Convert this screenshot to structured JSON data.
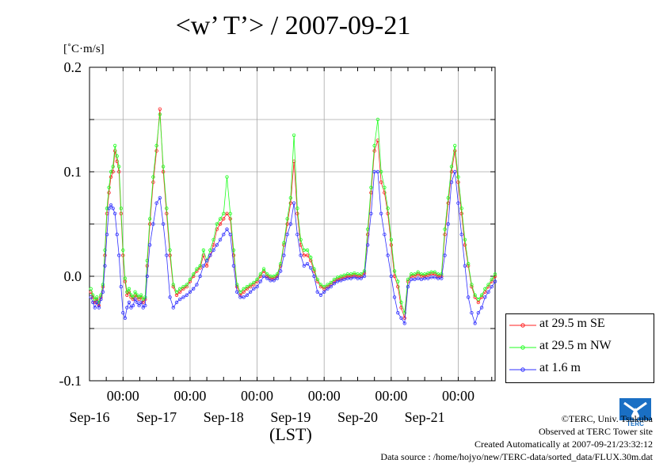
{
  "header": {
    "title": "<w’ T’> / 2007-09-21",
    "unit": "[˚C·m/s]",
    "x_caption": "(LST)"
  },
  "chart_data": {
    "type": "line",
    "title": "<w’ T’> / 2007-09-21",
    "ylabel": "[˚C·m/s]",
    "xlabel": "(LST)",
    "ylim": [
      -0.1,
      0.2
    ],
    "xlim_days": [
      15.5,
      21.55
    ],
    "y_ticks": [
      "0.2",
      "0.1",
      "0.0",
      "-0.1"
    ],
    "x_ticks": [
      "00:00",
      "00:00",
      "00:00",
      "00:00",
      "00:00",
      "00:00"
    ],
    "x_ticks_days": [
      16,
      17,
      18,
      19,
      20,
      21
    ],
    "date_labels": [
      "Sep-16",
      "Sep-17",
      "Sep-18",
      "Sep-19",
      "Sep-20",
      "Sep-21"
    ],
    "date_labels_days": [
      15.5,
      16.5,
      17.5,
      18.5,
      19.5,
      20.5
    ],
    "x_unit": "day of September 2007 (LST)",
    "grid": true,
    "legend_position": "bottom-right outside",
    "series": [
      {
        "name": "at 29.5 m SE",
        "color": "#ff2020",
        "x": [
          15.52,
          15.55,
          15.58,
          15.61,
          15.64,
          15.67,
          15.7,
          15.73,
          15.76,
          15.79,
          15.82,
          15.85,
          15.88,
          15.91,
          15.94,
          15.97,
          16.0,
          16.03,
          16.06,
          16.09,
          16.12,
          16.15,
          16.18,
          16.21,
          16.24,
          16.27,
          16.3,
          16.33,
          16.36,
          16.4,
          16.45,
          16.5,
          16.55,
          16.6,
          16.65,
          16.7,
          16.75,
          16.8,
          16.85,
          16.9,
          16.95,
          17.0,
          17.05,
          17.1,
          17.15,
          17.2,
          17.25,
          17.3,
          17.35,
          17.4,
          17.45,
          17.5,
          17.55,
          17.6,
          17.65,
          17.7,
          17.75,
          17.8,
          17.85,
          17.9,
          17.95,
          18.0,
          18.05,
          18.1,
          18.15,
          18.2,
          18.25,
          18.3,
          18.35,
          18.4,
          18.45,
          18.5,
          18.55,
          18.6,
          18.65,
          18.7,
          18.75,
          18.8,
          18.85,
          18.9,
          18.95,
          19.0,
          19.05,
          19.1,
          19.15,
          19.2,
          19.25,
          19.3,
          19.35,
          19.4,
          19.45,
          19.5,
          19.55,
          19.6,
          19.65,
          19.7,
          19.75,
          19.8,
          19.85,
          19.9,
          19.95,
          20.0,
          20.05,
          20.1,
          20.15,
          20.2,
          20.25,
          20.3,
          20.35,
          20.4,
          20.45,
          20.5,
          20.55,
          20.6,
          20.65,
          20.7,
          20.75,
          20.8,
          20.85,
          20.9,
          20.95,
          21.0,
          21.05,
          21.1,
          21.15,
          21.2,
          21.25,
          21.3,
          21.35,
          21.4,
          21.45,
          21.5,
          21.55
        ],
        "values": [
          -0.015,
          -0.02,
          -0.025,
          -0.022,
          -0.028,
          -0.02,
          -0.01,
          0.02,
          0.06,
          0.08,
          0.095,
          0.1,
          0.12,
          0.11,
          0.1,
          0.06,
          0.02,
          -0.005,
          -0.018,
          -0.015,
          -0.02,
          -0.022,
          -0.018,
          -0.02,
          -0.022,
          -0.02,
          -0.025,
          -0.022,
          0.01,
          0.05,
          0.09,
          0.12,
          0.16,
          0.1,
          0.06,
          0.02,
          -0.01,
          -0.018,
          -0.015,
          -0.012,
          -0.01,
          -0.005,
          0.0,
          0.005,
          0.008,
          0.02,
          0.01,
          0.02,
          0.03,
          0.045,
          0.05,
          0.055,
          0.06,
          0.055,
          0.02,
          -0.01,
          -0.018,
          -0.015,
          -0.012,
          -0.01,
          -0.008,
          -0.005,
          0.0,
          0.005,
          0.0,
          -0.002,
          -0.002,
          0.0,
          0.01,
          0.03,
          0.05,
          0.07,
          0.11,
          0.06,
          0.03,
          0.02,
          0.02,
          0.015,
          0.005,
          -0.005,
          -0.01,
          -0.012,
          -0.01,
          -0.008,
          -0.005,
          -0.003,
          -0.002,
          -0.001,
          0.0,
          0.0,
          0.001,
          0.0,
          0.0,
          0.003,
          0.04,
          0.08,
          0.12,
          0.13,
          0.09,
          0.08,
          0.06,
          0.03,
          0.0,
          -0.01,
          -0.03,
          -0.04,
          -0.005,
          0.0,
          0.0,
          0.002,
          0.0,
          0.0,
          0.001,
          0.002,
          0.002,
          0.0,
          0.0,
          0.04,
          0.07,
          0.1,
          0.12,
          0.09,
          0.06,
          0.03,
          0.01,
          -0.01,
          -0.02,
          -0.025,
          -0.02,
          -0.015,
          -0.01,
          -0.005,
          0.0
        ]
      },
      {
        "name": "at 29.5 m NW",
        "color": "#20ff20",
        "x": [
          15.52,
          15.55,
          15.58,
          15.61,
          15.64,
          15.67,
          15.7,
          15.73,
          15.76,
          15.79,
          15.82,
          15.85,
          15.88,
          15.91,
          15.94,
          15.97,
          16.0,
          16.03,
          16.06,
          16.09,
          16.12,
          16.15,
          16.18,
          16.21,
          16.24,
          16.27,
          16.3,
          16.33,
          16.36,
          16.4,
          16.45,
          16.5,
          16.55,
          16.6,
          16.65,
          16.7,
          16.75,
          16.8,
          16.85,
          16.9,
          16.95,
          17.0,
          17.05,
          17.1,
          17.15,
          17.2,
          17.25,
          17.3,
          17.35,
          17.4,
          17.45,
          17.5,
          17.55,
          17.6,
          17.65,
          17.7,
          17.75,
          17.8,
          17.85,
          17.9,
          17.95,
          18.0,
          18.05,
          18.1,
          18.15,
          18.2,
          18.25,
          18.3,
          18.35,
          18.4,
          18.45,
          18.5,
          18.55,
          18.6,
          18.65,
          18.7,
          18.75,
          18.8,
          18.85,
          18.9,
          18.95,
          19.0,
          19.05,
          19.1,
          19.15,
          19.2,
          19.25,
          19.3,
          19.35,
          19.4,
          19.45,
          19.5,
          19.55,
          19.6,
          19.65,
          19.7,
          19.75,
          19.8,
          19.85,
          19.9,
          19.95,
          20.0,
          20.05,
          20.1,
          20.15,
          20.2,
          20.25,
          20.3,
          20.35,
          20.4,
          20.45,
          20.5,
          20.55,
          20.6,
          20.65,
          20.7,
          20.75,
          20.8,
          20.85,
          20.9,
          20.95,
          21.0,
          21.05,
          21.1,
          21.15,
          21.2,
          21.25,
          21.3,
          21.35,
          21.4,
          21.45,
          21.5,
          21.55
        ],
        "values": [
          -0.012,
          -0.018,
          -0.022,
          -0.02,
          -0.025,
          -0.018,
          -0.008,
          0.025,
          0.065,
          0.085,
          0.1,
          0.105,
          0.125,
          0.115,
          0.105,
          0.065,
          0.025,
          -0.002,
          -0.015,
          -0.012,
          -0.018,
          -0.02,
          -0.015,
          -0.018,
          -0.02,
          -0.018,
          -0.022,
          -0.02,
          0.015,
          0.055,
          0.095,
          0.125,
          0.155,
          0.105,
          0.065,
          0.025,
          -0.008,
          -0.015,
          -0.012,
          -0.01,
          -0.008,
          -0.003,
          0.002,
          0.007,
          0.01,
          0.025,
          0.015,
          0.025,
          0.035,
          0.05,
          0.055,
          0.06,
          0.095,
          0.06,
          0.025,
          -0.008,
          -0.015,
          -0.012,
          -0.01,
          -0.008,
          -0.006,
          -0.003,
          0.002,
          0.007,
          0.002,
          0.0,
          0.0,
          0.002,
          0.012,
          0.032,
          0.055,
          0.075,
          0.135,
          0.065,
          0.035,
          0.025,
          0.025,
          0.018,
          0.007,
          -0.003,
          -0.008,
          -0.01,
          -0.008,
          -0.006,
          -0.003,
          -0.001,
          0.0,
          0.001,
          0.002,
          0.002,
          0.003,
          0.002,
          0.002,
          0.005,
          0.045,
          0.085,
          0.125,
          0.15,
          0.1,
          0.085,
          0.065,
          0.035,
          0.005,
          -0.005,
          -0.025,
          -0.035,
          -0.003,
          0.002,
          0.002,
          0.004,
          0.002,
          0.002,
          0.003,
          0.004,
          0.004,
          0.002,
          0.002,
          0.045,
          0.075,
          0.105,
          0.125,
          0.095,
          0.065,
          0.035,
          0.012,
          -0.008,
          -0.018,
          -0.022,
          -0.018,
          -0.012,
          -0.008,
          -0.003,
          0.002
        ]
      },
      {
        "name": "at 1.6 m",
        "color": "#3030ff",
        "x": [
          15.52,
          15.55,
          15.58,
          15.61,
          15.64,
          15.67,
          15.7,
          15.73,
          15.76,
          15.79,
          15.82,
          15.85,
          15.88,
          15.91,
          15.94,
          15.97,
          16.0,
          16.03,
          16.06,
          16.09,
          16.12,
          16.15,
          16.18,
          16.21,
          16.24,
          16.27,
          16.3,
          16.33,
          16.36,
          16.4,
          16.45,
          16.5,
          16.55,
          16.6,
          16.65,
          16.7,
          16.75,
          16.8,
          16.85,
          16.9,
          16.95,
          17.0,
          17.05,
          17.1,
          17.15,
          17.2,
          17.25,
          17.3,
          17.35,
          17.4,
          17.45,
          17.5,
          17.55,
          17.6,
          17.65,
          17.7,
          17.75,
          17.8,
          17.85,
          17.9,
          17.95,
          18.0,
          18.05,
          18.1,
          18.15,
          18.2,
          18.25,
          18.3,
          18.35,
          18.4,
          18.45,
          18.5,
          18.55,
          18.6,
          18.65,
          18.7,
          18.75,
          18.8,
          18.85,
          18.9,
          18.95,
          19.0,
          19.05,
          19.1,
          19.15,
          19.2,
          19.25,
          19.3,
          19.35,
          19.4,
          19.45,
          19.5,
          19.55,
          19.6,
          19.65,
          19.7,
          19.75,
          19.8,
          19.85,
          19.9,
          19.95,
          20.0,
          20.05,
          20.1,
          20.15,
          20.2,
          20.25,
          20.3,
          20.35,
          20.4,
          20.45,
          20.5,
          20.55,
          20.6,
          20.65,
          20.7,
          20.75,
          20.8,
          20.85,
          20.9,
          20.95,
          21.0,
          21.05,
          21.1,
          21.15,
          21.2,
          21.25,
          21.3,
          21.35,
          21.4,
          21.45,
          21.5,
          21.55
        ],
        "values": [
          -0.02,
          -0.025,
          -0.03,
          -0.025,
          -0.03,
          -0.022,
          -0.015,
          0.01,
          0.04,
          0.065,
          0.068,
          0.065,
          0.06,
          0.04,
          0.02,
          -0.01,
          -0.035,
          -0.04,
          -0.03,
          -0.025,
          -0.03,
          -0.028,
          -0.022,
          -0.025,
          -0.028,
          -0.025,
          -0.03,
          -0.028,
          0.0,
          0.03,
          0.05,
          0.07,
          0.075,
          0.05,
          0.02,
          -0.02,
          -0.03,
          -0.025,
          -0.022,
          -0.02,
          -0.018,
          -0.015,
          -0.012,
          -0.008,
          0.0,
          0.01,
          0.015,
          0.02,
          0.025,
          0.03,
          0.035,
          0.04,
          0.045,
          0.04,
          0.01,
          -0.015,
          -0.02,
          -0.02,
          -0.018,
          -0.015,
          -0.012,
          -0.01,
          -0.005,
          0.0,
          -0.002,
          -0.004,
          -0.004,
          -0.002,
          0.005,
          0.02,
          0.04,
          0.05,
          0.07,
          0.04,
          0.02,
          0.01,
          0.012,
          0.008,
          0.0,
          -0.015,
          -0.018,
          -0.015,
          -0.012,
          -0.01,
          -0.007,
          -0.005,
          -0.004,
          -0.003,
          -0.002,
          -0.002,
          -0.001,
          -0.002,
          -0.002,
          0.0,
          0.03,
          0.06,
          0.1,
          0.1,
          0.06,
          0.04,
          0.02,
          0.0,
          -0.02,
          -0.035,
          -0.04,
          -0.045,
          -0.01,
          -0.003,
          -0.003,
          -0.002,
          -0.003,
          -0.002,
          -0.002,
          -0.001,
          -0.001,
          -0.002,
          -0.002,
          0.02,
          0.05,
          0.09,
          0.1,
          0.07,
          0.04,
          0.01,
          -0.02,
          -0.035,
          -0.045,
          -0.035,
          -0.03,
          -0.02,
          -0.015,
          -0.01,
          -0.005
        ]
      }
    ]
  },
  "legend": {
    "items": [
      {
        "label": "at 29.5 m SE",
        "color": "#ff2020"
      },
      {
        "label": "at 29.5 m NW",
        "color": "#20ff20"
      },
      {
        "label": "at 1.6 m",
        "color": "#3030ff"
      }
    ]
  },
  "credits": {
    "copyright": "©TERC, Univ. Tsukuba",
    "observed": "Observed at TERC Tower site",
    "created": "Created Automatically at 2007-09-21/23:32:12",
    "source": "Data source : /home/hojyo/new/TERC-data/sorted_data/FLUX.30m.dat"
  },
  "logo": {
    "icon": "terc-logo-icon",
    "text": "TERC",
    "color": "#1a6fc4"
  }
}
